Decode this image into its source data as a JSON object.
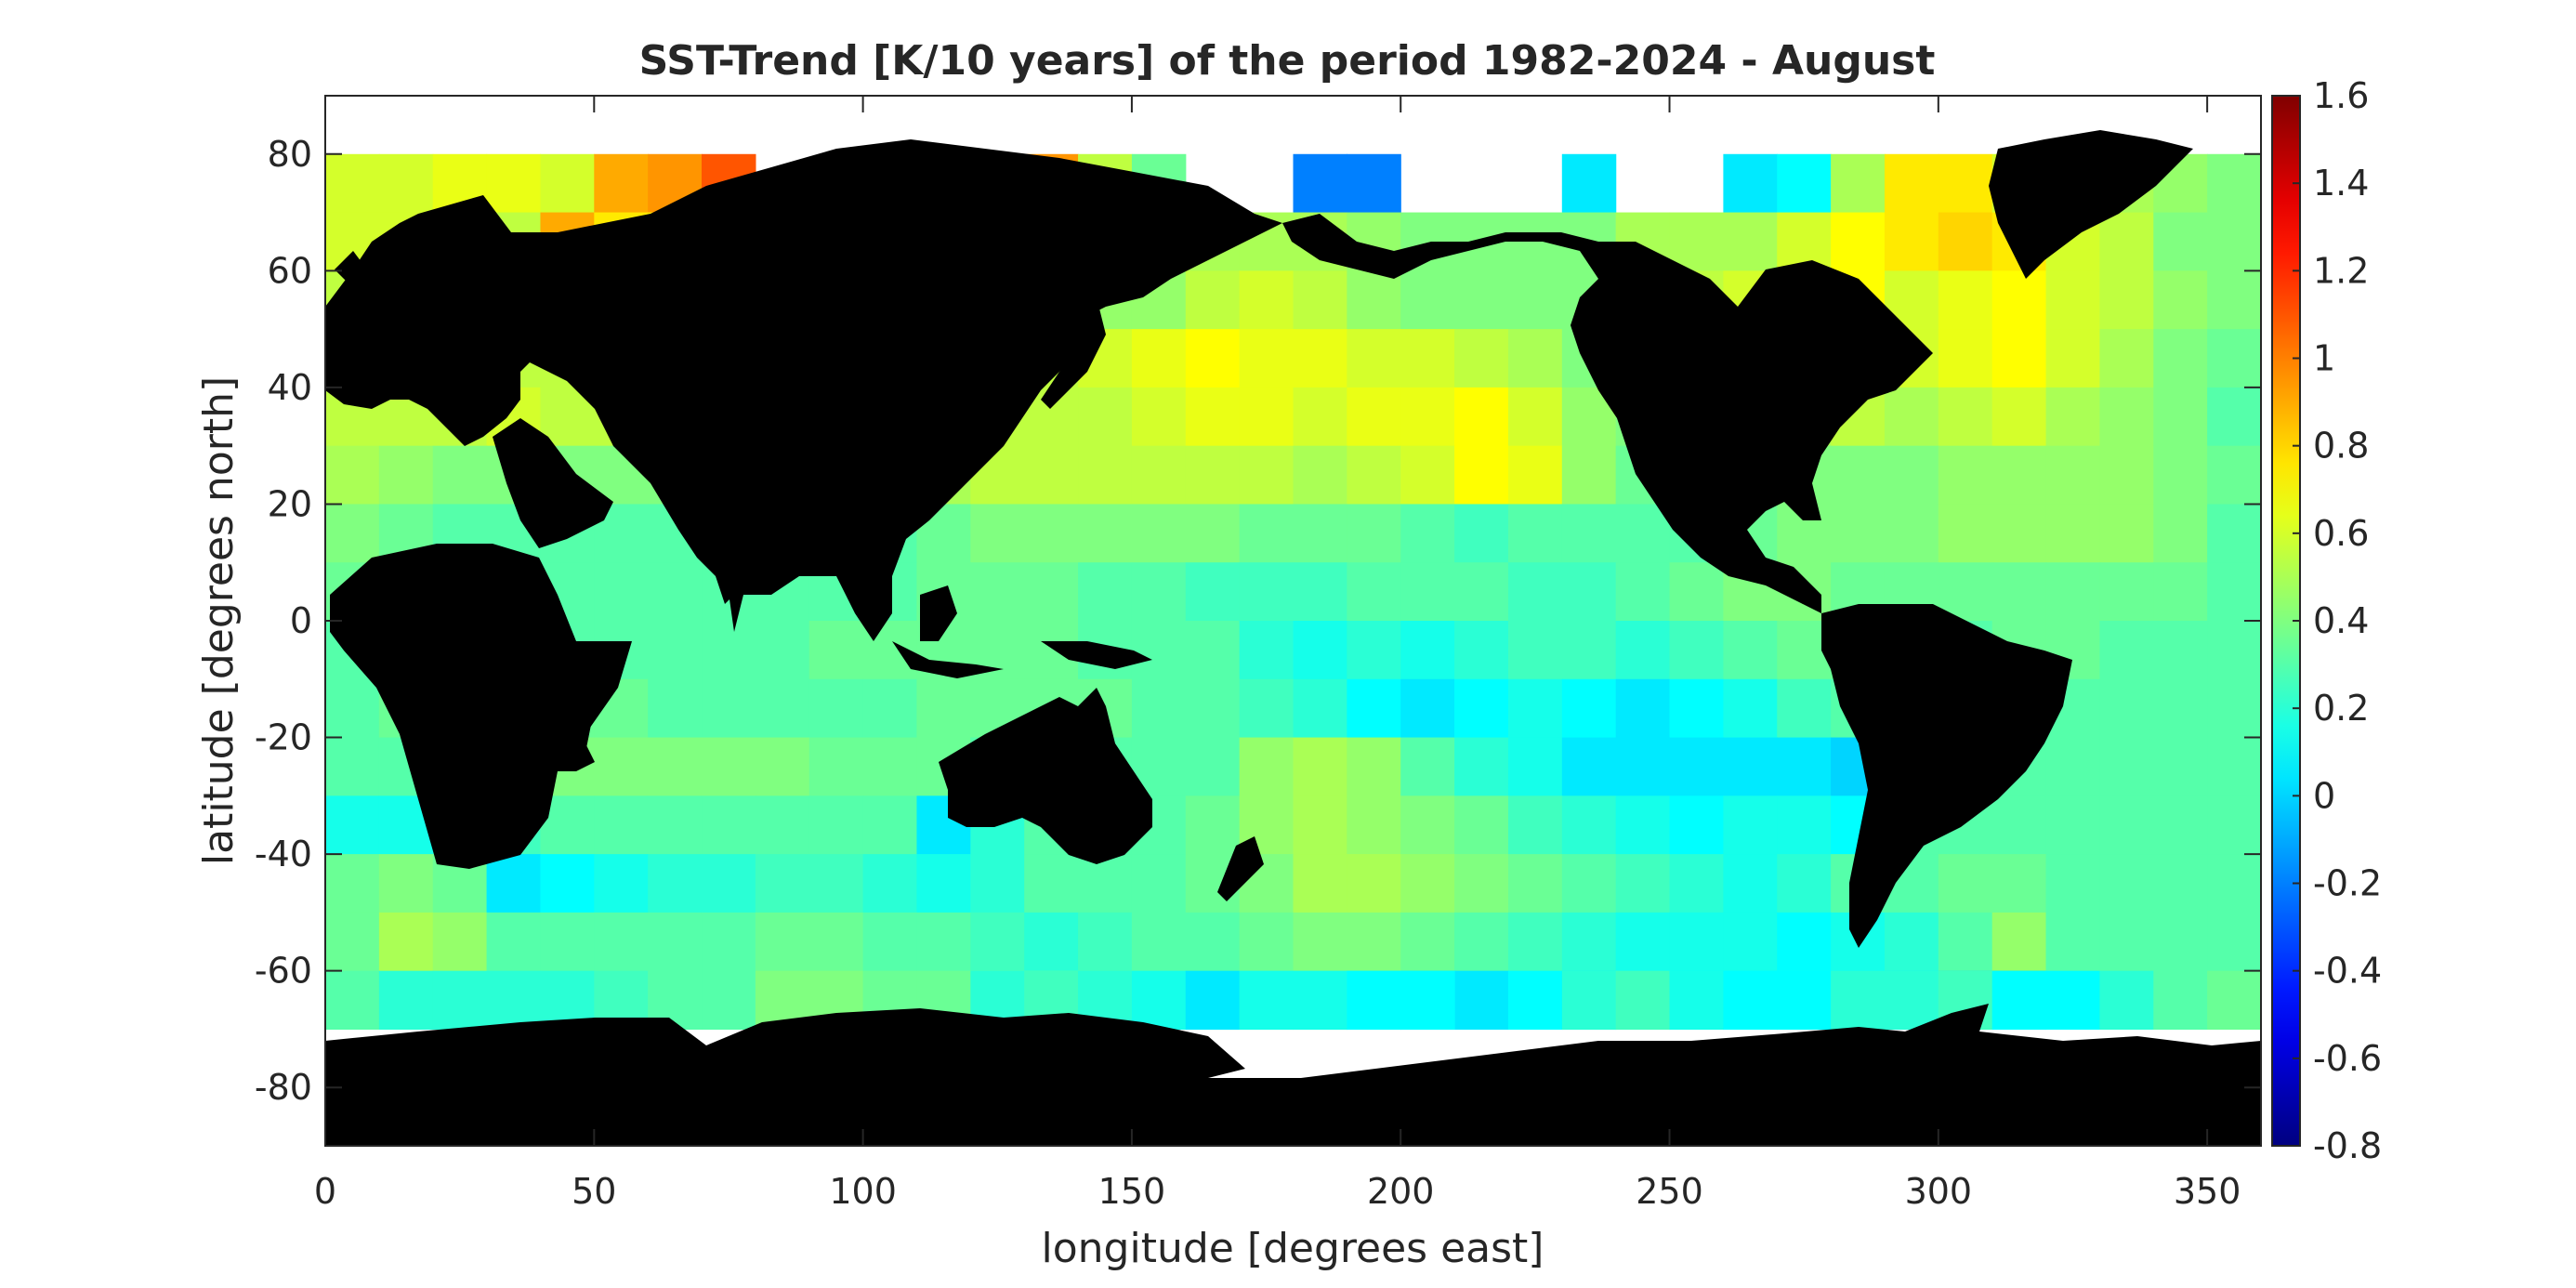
{
  "chart_data": {
    "type": "heatmap",
    "title": "SST-Trend [K/10 years] of the period 1982-2024 - August",
    "xlabel": "longitude [degrees east]",
    "ylabel": "latitude [degrees north]",
    "xlim": [
      0,
      360
    ],
    "ylim": [
      -90,
      90
    ],
    "xticks": [
      0,
      50,
      100,
      150,
      200,
      250,
      300,
      350
    ],
    "yticks": [
      80,
      60,
      40,
      20,
      0,
      -20,
      -40,
      -60,
      -80
    ],
    "colorbar": {
      "range": [
        -0.8,
        1.6
      ],
      "ticks": [
        1.6,
        1.4,
        1.2,
        1,
        0.8,
        0.6,
        0.4,
        0.2,
        0,
        -0.2,
        -0.4,
        -0.6,
        -0.8
      ],
      "colormap": "jet"
    },
    "grid": {
      "cell_deg": 10,
      "lon_start": 0,
      "lat_start": 80
    },
    "rows_lat_top": [
      80,
      70,
      60,
      50,
      40,
      30,
      20,
      10,
      0,
      -10,
      -20,
      -30,
      -40,
      -50,
      -60
    ],
    "values": [
      [
        0.6,
        0.6,
        0.65,
        0.65,
        0.6,
        0.9,
        0.95,
        1.1,
        null,
        null,
        null,
        0.9,
        0.85,
        0.95,
        0.55,
        0.35,
        null,
        null,
        -0.2,
        -0.2,
        null,
        null,
        null,
        0.05,
        null,
        null,
        0.05,
        0.1,
        0.5,
        0.75,
        0.75,
        0.6,
        0.55,
        0.5,
        0.45,
        0.4
      ],
      [
        0.6,
        0.6,
        0.55,
        0.55,
        0.9,
        0.75,
        0.75,
        0.85,
        0.6,
        0.55,
        0.5,
        0.55,
        0.55,
        0.5,
        0.45,
        0.45,
        0.5,
        0.5,
        0.5,
        0.45,
        0.4,
        0.4,
        0.4,
        0.4,
        0.5,
        0.5,
        0.5,
        0.6,
        0.7,
        0.75,
        0.8,
        0.75,
        0.6,
        0.55,
        0.4,
        0.4
      ],
      [
        0.55,
        0.5,
        0.55,
        0.5,
        0.5,
        0.5,
        0.55,
        0.55,
        0.5,
        0.45,
        0.45,
        0.5,
        0.5,
        0.45,
        0.45,
        0.45,
        0.55,
        0.6,
        0.55,
        0.45,
        0.4,
        0.4,
        0.4,
        0.4,
        0.5,
        0.55,
        0.6,
        0.75,
        0.7,
        0.6,
        0.65,
        0.7,
        0.6,
        0.55,
        0.45,
        0.4
      ],
      [
        0.5,
        0.5,
        0.55,
        0.55,
        0.55,
        0.55,
        0.5,
        0.5,
        0.45,
        0.45,
        0.45,
        0.5,
        0.5,
        0.55,
        0.6,
        0.65,
        0.7,
        0.65,
        0.65,
        0.6,
        0.6,
        0.55,
        0.5,
        0.4,
        0.45,
        0.5,
        0.55,
        0.65,
        0.7,
        0.6,
        0.65,
        0.7,
        0.6,
        0.5,
        0.4,
        0.35
      ],
      [
        0.55,
        0.55,
        0.55,
        0.6,
        0.55,
        0.55,
        0.5,
        0.5,
        0.45,
        0.45,
        0.45,
        0.5,
        0.55,
        0.55,
        0.55,
        0.6,
        0.65,
        0.65,
        0.6,
        0.65,
        0.65,
        0.7,
        0.6,
        0.45,
        0.4,
        0.4,
        0.4,
        0.5,
        0.55,
        0.5,
        0.55,
        0.6,
        0.5,
        0.45,
        0.4,
        0.3
      ],
      [
        0.5,
        0.45,
        0.4,
        0.4,
        0.4,
        0.4,
        0.4,
        0.4,
        0.45,
        0.45,
        0.45,
        0.5,
        0.55,
        0.55,
        0.55,
        0.55,
        0.55,
        0.55,
        0.5,
        0.55,
        0.6,
        0.7,
        0.65,
        0.45,
        0.35,
        0.35,
        0.35,
        0.4,
        0.4,
        0.4,
        0.45,
        0.45,
        0.45,
        0.45,
        0.4,
        0.35
      ],
      [
        0.4,
        0.35,
        0.3,
        0.3,
        0.3,
        0.3,
        0.3,
        0.3,
        0.3,
        0.3,
        0.3,
        0.35,
        0.4,
        0.4,
        0.4,
        0.4,
        0.4,
        0.35,
        0.35,
        0.35,
        0.3,
        0.25,
        0.3,
        0.3,
        0.3,
        0.3,
        0.35,
        0.4,
        0.4,
        0.4,
        0.45,
        0.45,
        0.45,
        0.45,
        0.4,
        0.3
      ],
      [
        0.35,
        0.35,
        0.3,
        0.3,
        0.3,
        0.3,
        0.3,
        0.3,
        0.3,
        0.3,
        0.3,
        0.35,
        0.35,
        0.35,
        0.3,
        0.3,
        0.25,
        0.25,
        0.25,
        0.3,
        0.3,
        0.3,
        0.25,
        0.25,
        0.3,
        0.35,
        0.4,
        0.4,
        0.35,
        0.35,
        0.35,
        0.35,
        0.35,
        0.35,
        0.35,
        0.3
      ],
      [
        0.3,
        0.3,
        0.3,
        0.3,
        0.3,
        0.3,
        0.3,
        0.3,
        0.3,
        0.35,
        0.35,
        0.35,
        0.35,
        0.35,
        0.3,
        0.3,
        0.3,
        0.2,
        0.15,
        0.2,
        0.15,
        0.2,
        0.25,
        0.25,
        0.2,
        0.25,
        0.3,
        0.35,
        0.35,
        0.3,
        0.3,
        0.35,
        0.35,
        0.3,
        0.3,
        0.3
      ],
      [
        0.3,
        0.35,
        0.35,
        0.35,
        0.35,
        0.35,
        0.3,
        0.3,
        0.3,
        0.3,
        0.3,
        0.35,
        0.35,
        0.35,
        0.35,
        0.3,
        0.3,
        0.25,
        0.2,
        0.1,
        0.05,
        0.1,
        0.15,
        0.1,
        0.05,
        0.1,
        0.15,
        0.25,
        0.3,
        0.3,
        0.3,
        0.3,
        0.3,
        0.3,
        0.3,
        0.3
      ],
      [
        0.3,
        0.3,
        0.35,
        0.35,
        0.4,
        0.4,
        0.4,
        0.4,
        0.4,
        0.35,
        0.35,
        0.35,
        0.3,
        0.3,
        0.3,
        0.3,
        0.3,
        0.45,
        0.5,
        0.45,
        0.3,
        0.2,
        0.15,
        0.05,
        0.05,
        0.05,
        0.05,
        0.05,
        0.0,
        0.15,
        0.3,
        0.3,
        0.3,
        0.3,
        0.3,
        0.3
      ],
      [
        0.15,
        0.15,
        0.2,
        0.25,
        0.3,
        0.3,
        0.3,
        0.3,
        0.3,
        0.3,
        0.3,
        0.05,
        0.2,
        0.3,
        0.3,
        0.3,
        0.35,
        0.45,
        0.5,
        0.45,
        0.4,
        0.35,
        0.25,
        0.2,
        0.15,
        0.1,
        0.15,
        0.15,
        0.1,
        0.3,
        0.3,
        0.3,
        0.3,
        0.3,
        0.3,
        0.3
      ],
      [
        0.35,
        0.4,
        0.35,
        0.05,
        0.1,
        0.15,
        0.2,
        0.2,
        0.25,
        0.25,
        0.2,
        0.15,
        0.2,
        0.3,
        0.3,
        0.3,
        0.35,
        0.4,
        0.5,
        0.5,
        0.45,
        0.4,
        0.35,
        0.3,
        0.25,
        0.2,
        0.15,
        0.2,
        0.3,
        0.3,
        0.35,
        0.35,
        0.3,
        0.3,
        0.3,
        0.3
      ],
      [
        0.35,
        0.5,
        0.45,
        0.3,
        0.3,
        0.3,
        0.3,
        0.3,
        0.35,
        0.35,
        0.3,
        0.3,
        0.25,
        0.2,
        0.25,
        0.3,
        0.3,
        0.35,
        0.4,
        0.4,
        0.35,
        0.3,
        0.25,
        0.2,
        0.15,
        0.15,
        0.15,
        0.1,
        0.15,
        0.2,
        0.3,
        0.45,
        0.3,
        0.3,
        0.3,
        0.3
      ],
      [
        0.3,
        0.2,
        0.2,
        0.2,
        0.2,
        0.25,
        0.3,
        0.3,
        0.4,
        0.4,
        0.35,
        0.35,
        0.35,
        0.35,
        0.3,
        0.3,
        0.3,
        0.3,
        0.3,
        0.15,
        0.05,
        0.05,
        0.1,
        0.05,
        0.15,
        0.1,
        0.1,
        0.15,
        0.1,
        0.05,
        0.0,
        0.0,
        0.1,
        0.2,
        0.3,
        0.35
      ]
    ],
    "southern_band": {
      "lat_top": -60,
      "lat_bottom": -70,
      "lon_start": 120,
      "values": [
        0.2,
        0.25,
        0.2,
        0.15,
        0.05,
        0.15,
        0.15,
        0.1,
        0.1,
        null,
        null,
        0.2,
        0.25,
        0.15,
        0.1,
        0.1,
        0.2,
        0.2,
        0.25,
        0.1
      ]
    }
  }
}
